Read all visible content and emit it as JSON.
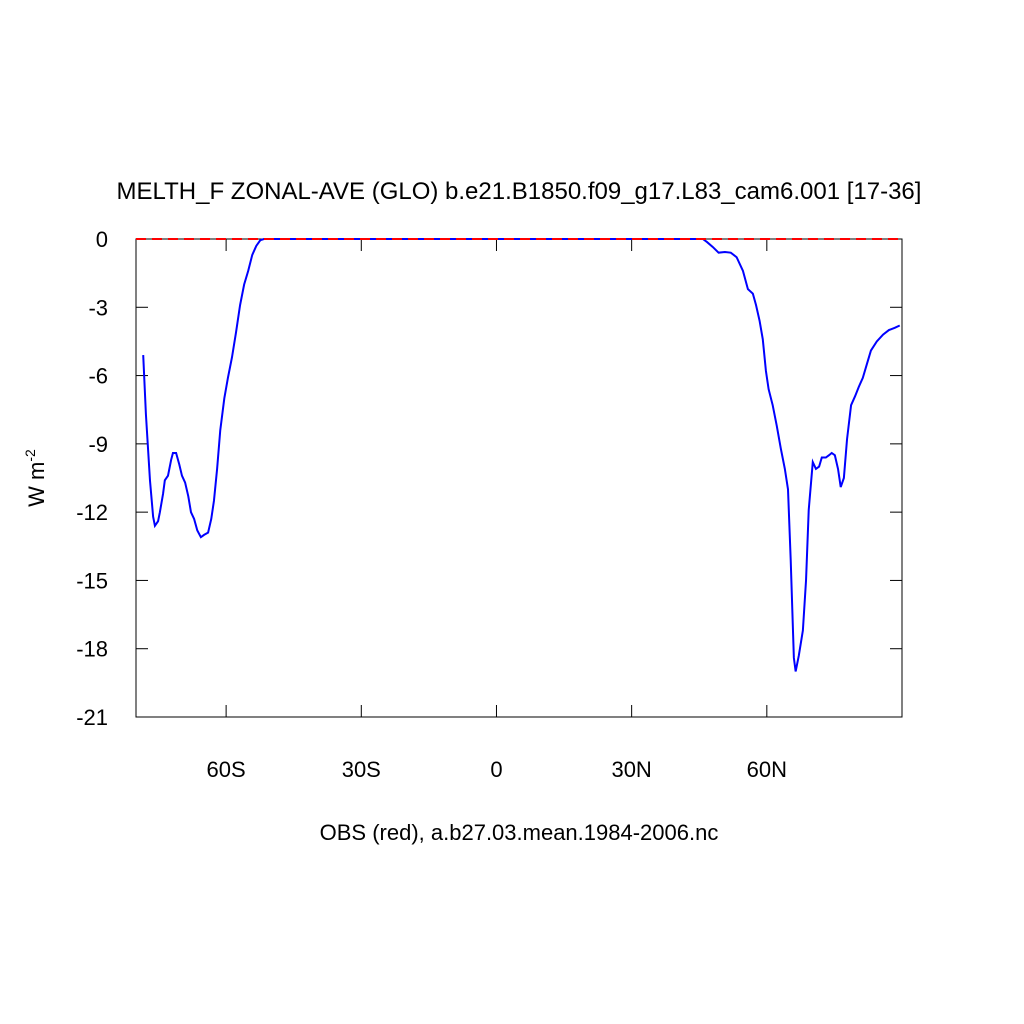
{
  "chart_data": {
    "type": "line",
    "title": "MELTH_F ZONAL-AVE (GLO) b.e21.B1850.f09_g17.L83_cam6.001 [17-36]",
    "x_label": "OBS (red), a.b27.03.mean.1984-2006.nc",
    "y_label": {
      "text": "W m",
      "superscript": "-2"
    },
    "xlim": [
      -80,
      90
    ],
    "xticks": [
      {
        "value": -60,
        "label": "60S"
      },
      {
        "value": -30,
        "label": "30S"
      },
      0,
      {
        "value": 30,
        "label": "30N"
      },
      {
        "value": 60,
        "label": "60N"
      }
    ],
    "ylim": [
      -21,
      0
    ],
    "yticks": [
      0,
      -3,
      -6,
      -9,
      -12,
      -15,
      -18,
      -21
    ],
    "series": [
      {
        "color": "#0000ff",
        "dash": false,
        "x": [
          -78.4,
          -77.8,
          -76.9,
          -76.2,
          -75.8,
          -75.1,
          -74.7,
          -74.0,
          -73.6,
          -72.9,
          -72.2,
          -71.8,
          -71.1,
          -70.4,
          -69.8,
          -69.1,
          -68.4,
          -67.8,
          -67.1,
          -66.4,
          -65.6,
          -64.9,
          -64.0,
          -63.3,
          -62.7,
          -62.0,
          -61.3,
          -60.4,
          -59.6,
          -58.7,
          -57.8,
          -56.9,
          -56.0,
          -55.1,
          -54.2,
          -53.3,
          -52.4,
          -51.6,
          45.8,
          46.7,
          48.0,
          49.3,
          50.7,
          52.0,
          53.3,
          54.7,
          55.8,
          56.9,
          57.6,
          58.4,
          59.1,
          59.8,
          60.4,
          61.3,
          62.2,
          63.1,
          64.0,
          64.7,
          65.3,
          66.0,
          66.4,
          67.1,
          68.0,
          68.7,
          69.3,
          70.2,
          70.9,
          71.6,
          72.2,
          73.1,
          73.8,
          74.4,
          75.1,
          75.8,
          76.4,
          77.1,
          77.8,
          78.7,
          79.6,
          80.4,
          81.3,
          82.2,
          83.1,
          84.4,
          85.8,
          87.1,
          88.4,
          89.5
        ],
        "values": [
          -5.1,
          -7.7,
          -10.6,
          -12.2,
          -12.6,
          -12.4,
          -12.0,
          -11.2,
          -10.6,
          -10.4,
          -9.7,
          -9.4,
          -9.4,
          -9.9,
          -10.4,
          -10.7,
          -11.3,
          -12.0,
          -12.3,
          -12.8,
          -13.1,
          -13.0,
          -12.9,
          -12.3,
          -11.5,
          -10.1,
          -8.4,
          -7.0,
          -6.1,
          -5.2,
          -4.1,
          -2.9,
          -2.0,
          -1.4,
          -0.7,
          -0.3,
          -0.05,
          0,
          0,
          -0.13,
          -0.35,
          -0.6,
          -0.57,
          -0.6,
          -0.8,
          -1.4,
          -2.2,
          -2.4,
          -2.9,
          -3.6,
          -4.4,
          -5.8,
          -6.6,
          -7.3,
          -8.2,
          -9.2,
          -10.1,
          -11.0,
          -14.1,
          -18.4,
          -19.0,
          -18.3,
          -17.2,
          -15.0,
          -11.9,
          -9.8,
          -10.1,
          -10.0,
          -9.6,
          -9.6,
          -9.5,
          -9.4,
          -9.5,
          -10.1,
          -10.9,
          -10.5,
          -8.8,
          -7.3,
          -6.9,
          -6.5,
          -6.1,
          -5.5,
          -4.9,
          -4.5,
          -4.2,
          -4.0,
          -3.9,
          -3.8
        ]
      },
      {
        "color": "#ff0000",
        "dash": true,
        "x": [
          -80,
          90
        ],
        "values": [
          0,
          0
        ]
      }
    ]
  }
}
